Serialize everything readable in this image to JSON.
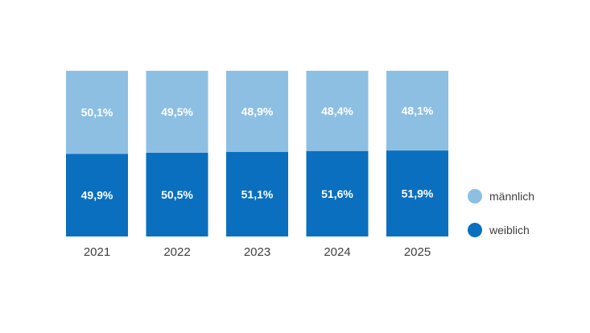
{
  "chart_data": {
    "type": "bar",
    "stacked": true,
    "percent_stacked": true,
    "categories": [
      "2021",
      "2022",
      "2023",
      "2024",
      "2025"
    ],
    "series": [
      {
        "name": "männlich",
        "color": "#8dbfe3",
        "values": [
          50.1,
          49.5,
          48.9,
          48.4,
          48.1
        ],
        "labels": [
          "50,1%",
          "49,5%",
          "48,9%",
          "48,4%",
          "48,1%"
        ]
      },
      {
        "name": "weiblich",
        "color": "#0a6fbf",
        "values": [
          49.9,
          50.5,
          51.1,
          51.6,
          51.9
        ],
        "labels": [
          "49,9%",
          "50,5%",
          "51,1%",
          "51,6%",
          "51,9%"
        ]
      }
    ],
    "ylim": [
      0,
      100
    ],
    "grid": false,
    "legend": "right",
    "title": "",
    "xlabel": "",
    "ylabel": ""
  }
}
